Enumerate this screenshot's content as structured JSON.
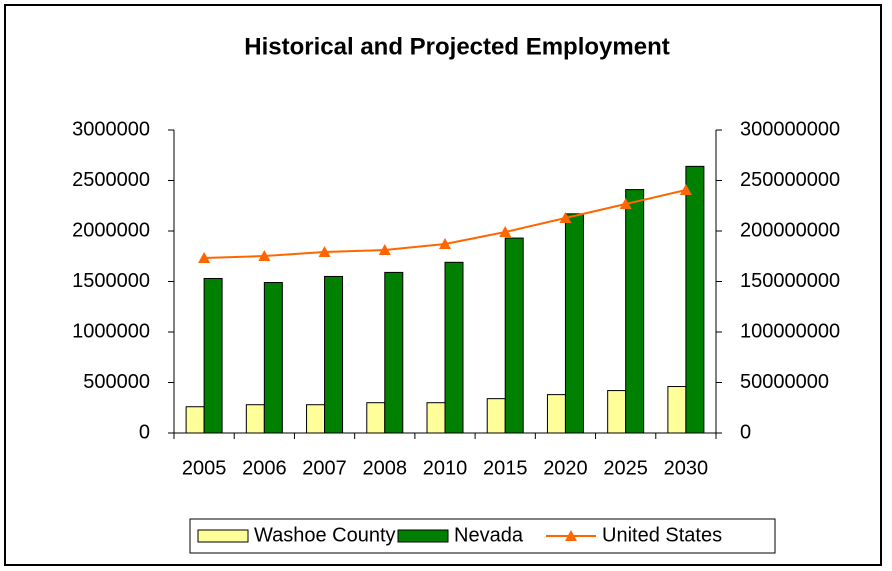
{
  "chart_data": {
    "type": "bar",
    "title": "Historical and Projected Employment",
    "categories": [
      "2005",
      "2006",
      "2007",
      "2008",
      "2010",
      "2015",
      "2020",
      "2025",
      "2030"
    ],
    "series": [
      {
        "name": "Washoe County",
        "color": "#ffff99",
        "values": [
          260000,
          280000,
          280000,
          300000,
          300000,
          340000,
          380000,
          420000,
          460000
        ]
      },
      {
        "name": "Nevada",
        "color": "#008000",
        "values": [
          1530000,
          1490000,
          1550000,
          1590000,
          1690000,
          1930000,
          2170000,
          2410000,
          2640000
        ]
      },
      {
        "name": "United States",
        "color": "#ff6600",
        "type": "line",
        "axis": "y2",
        "values": [
          173300000,
          175200000,
          179200000,
          181200000,
          187100000,
          199000000,
          212900000,
          226700000,
          240600000
        ]
      }
    ],
    "ylim": [
      0,
      3000000
    ],
    "yticks": [
      0,
      500000,
      1000000,
      1500000,
      2000000,
      2500000,
      3000000
    ],
    "y2lim": [
      0,
      300000000
    ],
    "y2ticks": [
      0,
      50000000,
      100000000,
      150000000,
      200000000,
      250000000,
      300000000
    ],
    "legend": "bottom"
  }
}
